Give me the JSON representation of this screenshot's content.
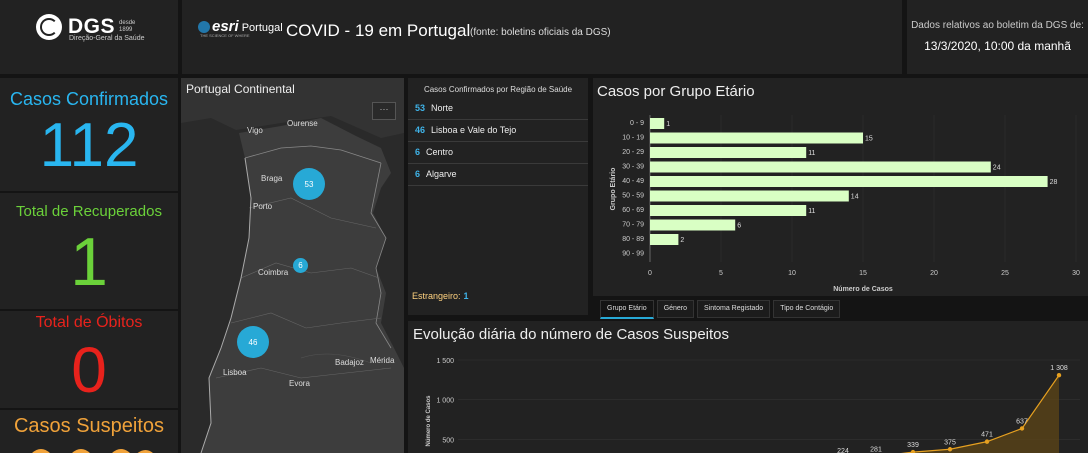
{
  "header": {
    "logo": {
      "name": "DGS",
      "since_line1": "desde",
      "since_line2": "1899",
      "subtitle": "Direção-Geral da Saúde"
    },
    "esri": {
      "brand": "esri",
      "country": "Portugal",
      "tagline": "THE SCIENCE OF WHERE"
    },
    "title": "COVID - 19 em Portugal",
    "source": "(fonte: boletins oficiais da DGS)",
    "date_label": "Dados relativos ao boletim da DGS de:",
    "date_value": "13/3/2020, 10:00 da manhã"
  },
  "stats": {
    "confirmed": {
      "label": "Casos Confirmados",
      "value": "112",
      "color": "#29b6f0"
    },
    "recovered": {
      "label": "Total de Recuperados",
      "value": "1",
      "color": "#6bd13a"
    },
    "deaths": {
      "label": "Total de Óbitos",
      "value": "0",
      "color": "#e8221c"
    },
    "suspected": {
      "label": "Casos Suspeitos",
      "color": "#f0a23a"
    }
  },
  "map": {
    "title": "Portugal Continental",
    "more": "···",
    "cities": [
      "Ourense",
      "Vigo",
      "Braga",
      "Porto",
      "Coimbra",
      "Badajoz",
      "Mérida",
      "Lisboa",
      "Evora"
    ],
    "clusters": [
      "53",
      "6",
      "46"
    ]
  },
  "regions": {
    "title": "Casos Confirmados por Região de Saúde",
    "rows": [
      {
        "count": "53",
        "name": "Norte"
      },
      {
        "count": "46",
        "name": "Lisboa e Vale do Tejo"
      },
      {
        "count": "6",
        "name": "Centro"
      },
      {
        "count": "6",
        "name": "Algarve"
      }
    ],
    "foreign_label": "Estrangeiro:",
    "foreign_count": "1"
  },
  "age_chart": {
    "title": "Casos por Grupo Etário",
    "tabs": [
      "Grupo Etário",
      "Género",
      "Sintoma Registado",
      "Tipo de Contágio"
    ],
    "active_tab": 0,
    "chart_data": {
      "type": "bar",
      "orientation": "horizontal",
      "categories": [
        "0 - 9",
        "10 - 19",
        "20 - 29",
        "30 - 39",
        "40 - 49",
        "50 - 59",
        "60 - 69",
        "70 - 79",
        "80 - 89",
        "90 - 99"
      ],
      "values": [
        1,
        15,
        11,
        24,
        28,
        14,
        11,
        6,
        2,
        0
      ],
      "xlabel": "Número de Casos",
      "ylabel": "Grupo Etário",
      "xlim": [
        0,
        30
      ],
      "xticks": [
        0,
        5,
        10,
        15,
        20,
        25,
        30
      ],
      "bar_color": "#d9ffc4"
    }
  },
  "evolution": {
    "title": "Evolução diária do número de Casos Suspeitos",
    "chart_data": {
      "type": "area",
      "ylabel": "Número de Casos",
      "yticks": [
        "500",
        "1 000",
        "1 500"
      ],
      "ylim": [
        0,
        1500
      ],
      "points": [
        {
          "label": "281",
          "value": 281
        },
        {
          "label": "339",
          "value": 339
        },
        {
          "label": "375",
          "value": 375
        },
        {
          "label": "471",
          "value": 471
        },
        {
          "label": "637",
          "value": 637
        },
        {
          "label": "1 308",
          "value": 1308
        }
      ],
      "partial_label": "224",
      "line_color": "#e6a020"
    }
  }
}
